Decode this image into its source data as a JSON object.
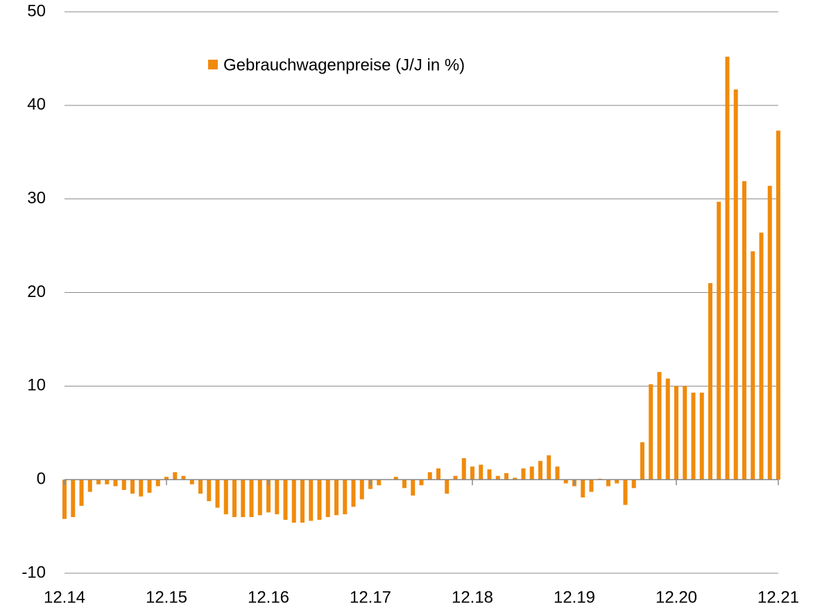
{
  "chart_data": {
    "type": "bar",
    "legend": "Gebrauchwagenpreise (J/J in %)",
    "color": "#f08a0b",
    "categories": [
      "12.14",
      null,
      null,
      null,
      null,
      null,
      null,
      null,
      null,
      null,
      null,
      null,
      "12.15",
      null,
      null,
      null,
      null,
      null,
      null,
      null,
      null,
      null,
      null,
      null,
      "12.16",
      null,
      null,
      null,
      null,
      null,
      null,
      null,
      null,
      null,
      null,
      null,
      "12.17",
      null,
      null,
      null,
      null,
      null,
      null,
      null,
      null,
      null,
      null,
      null,
      "12.18",
      null,
      null,
      null,
      null,
      null,
      null,
      null,
      null,
      null,
      null,
      null,
      "12.19",
      null,
      null,
      null,
      null,
      null,
      null,
      null,
      null,
      null,
      null,
      null,
      "12.20",
      null,
      null,
      null,
      null,
      null,
      null,
      null,
      null,
      null,
      null,
      null,
      "12.21"
    ],
    "values": [
      -4.2,
      -4.0,
      -2.8,
      -1.3,
      -0.5,
      -0.5,
      -0.7,
      -1.1,
      -1.5,
      -1.8,
      -1.4,
      -0.7,
      0.3,
      0.8,
      0.4,
      -0.5,
      -1.5,
      -2.3,
      -3.0,
      -3.7,
      -4.0,
      -4.0,
      -4.0,
      -3.8,
      -3.5,
      -3.7,
      -4.3,
      -4.6,
      -4.6,
      -4.4,
      -4.3,
      -4.0,
      -3.8,
      -3.7,
      -2.9,
      -2.1,
      -1.0,
      -0.6,
      0,
      0.3,
      -0.9,
      -1.7,
      -0.6,
      0.8,
      1.2,
      -1.5,
      0.4,
      2.3,
      1.4,
      1.6,
      1.1,
      0.4,
      0.7,
      0.2,
      1.2,
      1.4,
      2.0,
      2.6,
      1.4,
      -0.4,
      -0.7,
      -1.9,
      -1.3,
      0.1,
      -0.7,
      -0.4,
      -2.7,
      -0.9,
      4.0,
      10.2,
      11.5,
      10.8,
      10.0,
      10.0,
      9.3,
      9.3,
      21.0,
      29.7,
      45.2,
      41.7,
      31.9,
      24.4,
      26.4,
      31.4,
      37.3
    ],
    "ylim": [
      -10,
      50
    ],
    "yticks": [
      -10,
      0,
      10,
      20,
      30,
      40,
      50
    ],
    "grid": true
  }
}
